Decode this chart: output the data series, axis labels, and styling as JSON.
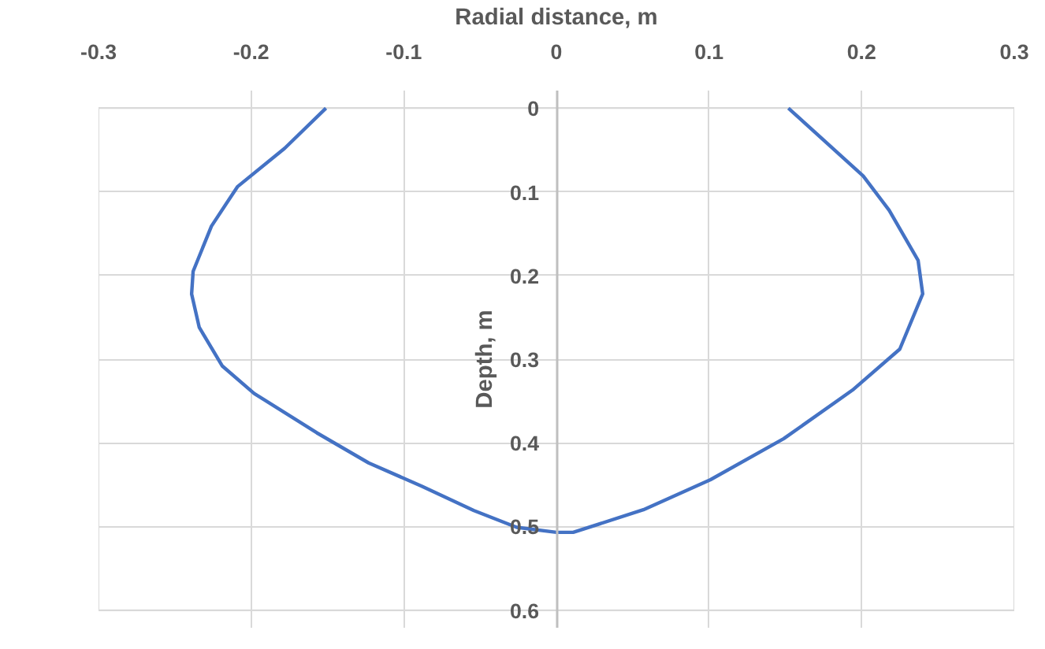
{
  "chart_data": {
    "type": "line",
    "xlabel": "Radial distance, m",
    "ylabel": "Depth, m",
    "series": [
      {
        "color": "#4472c4",
        "x": [
          -0.151,
          -0.178,
          -0.209,
          -0.226,
          -0.238,
          -0.239,
          -0.234,
          -0.219,
          -0.198,
          -0.157,
          -0.123,
          -0.088,
          -0.054,
          -0.026,
          0,
          0.011,
          0.057,
          0.101,
          0.149,
          0.194,
          0.225,
          0.24,
          0.237,
          0.218,
          0.201,
          0.152
        ],
        "values": [
          0,
          0.048,
          0.094,
          0.141,
          0.195,
          0.222,
          0.262,
          0.308,
          0.341,
          0.388,
          0.424,
          0.452,
          0.481,
          0.501,
          0.507,
          0.507,
          0.48,
          0.444,
          0.395,
          0.337,
          0.288,
          0.222,
          0.182,
          0.122,
          0.081,
          0
        ]
      }
    ],
    "xlim": [
      -0.3,
      0.3
    ],
    "xticks": [
      -0.3,
      -0.2,
      -0.1,
      0,
      0.1,
      0.2,
      0.3
    ],
    "ylim": [
      0.6,
      0
    ],
    "yticks": [
      0,
      0.1,
      0.2,
      0.3,
      0.4,
      0.5,
      0.6
    ],
    "grid": true,
    "marker": "none",
    "line_style": "solid"
  }
}
